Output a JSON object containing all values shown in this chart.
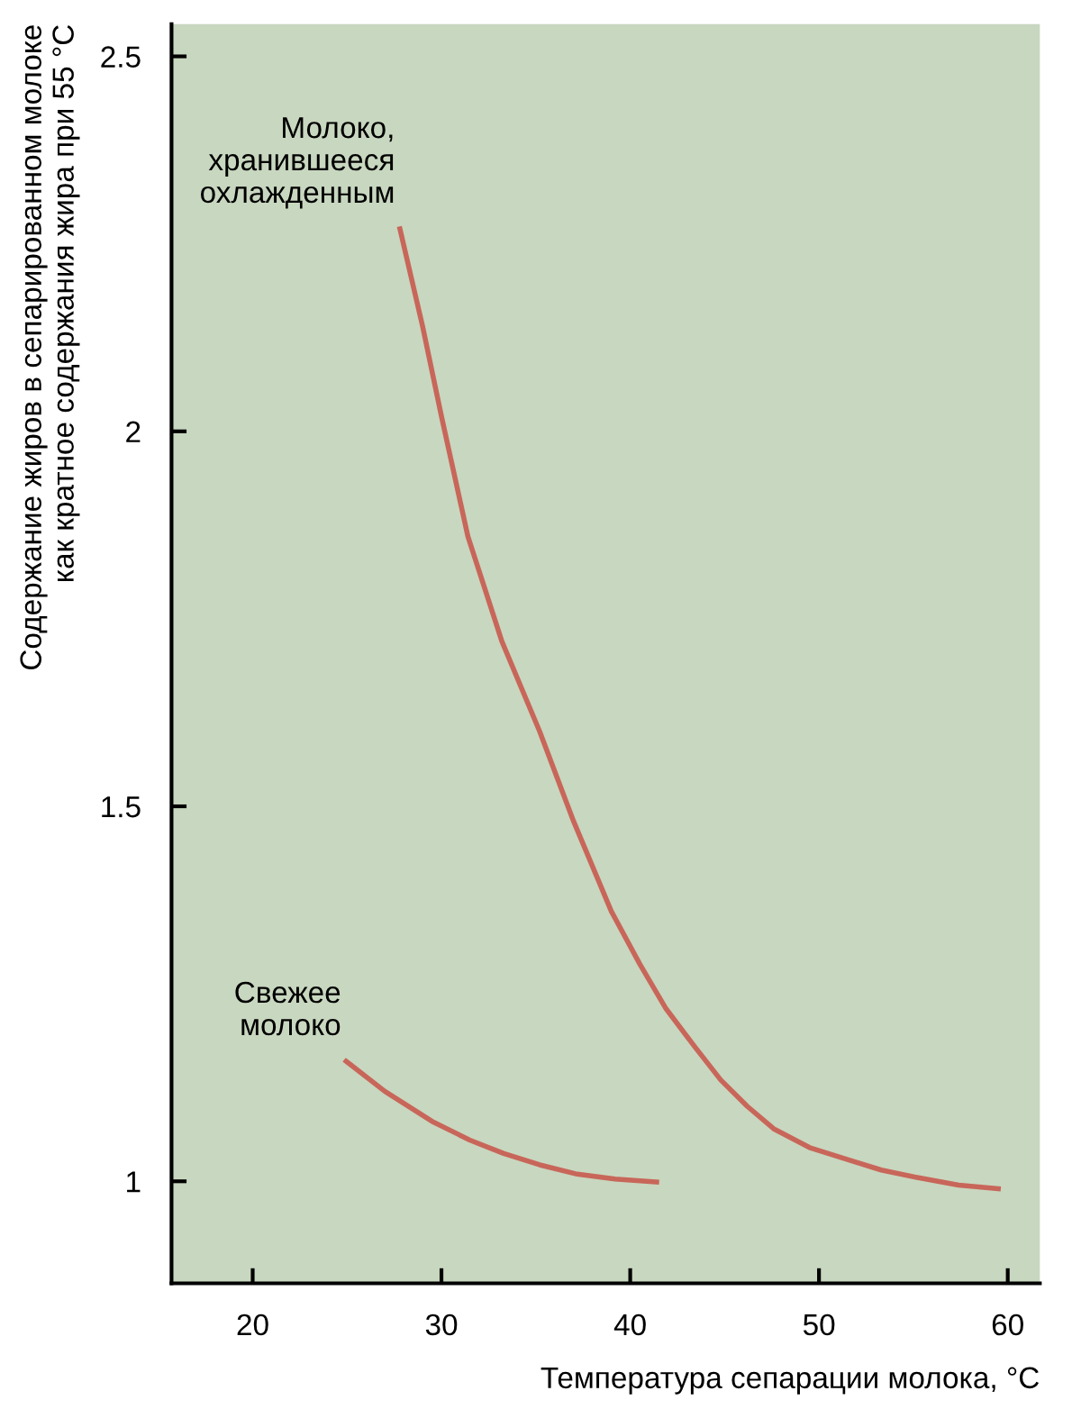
{
  "chart_data": {
    "type": "line",
    "xlabel": "Температура сепарации молока, °C",
    "ylabel": "Содержание жиров в сепарированном молоке\nкак кратное содержания жира при 55 °C",
    "xlim": [
      15.7,
      61.7
    ],
    "ylim": [
      0.864,
      2.543
    ],
    "xticks": [
      20,
      30,
      40,
      50,
      60
    ],
    "yticks": [
      1,
      1.5,
      2,
      2.5
    ],
    "grid": false,
    "legend": false,
    "marker": "none",
    "line_style": "solid",
    "series": [
      {
        "color": "#c8665a",
        "x": [
          27.8,
          29.0,
          30.0,
          31.4,
          33.2,
          35.2,
          37.0,
          39.0,
          40.5,
          41.9,
          43.4,
          44.8,
          46.2,
          47.6,
          49.5,
          51.4,
          53.3,
          55.2,
          57.4,
          59.5
        ],
        "values": [
          2.27,
          2.14,
          2.02,
          1.86,
          1.72,
          1.6,
          1.48,
          1.36,
          1.29,
          1.23,
          1.18,
          1.135,
          1.1,
          1.07,
          1.045,
          1.03,
          1.015,
          1.005,
          0.995,
          0.99
        ]
      },
      {
        "color": "#c8665a",
        "x": [
          24.95,
          27.0,
          29.5,
          31.5,
          33.3,
          35.2,
          37.1,
          39.2,
          41.4
        ],
        "values": [
          1.16,
          1.12,
          1.08,
          1.055,
          1.037,
          1.022,
          1.01,
          1.003,
          0.999
        ]
      }
    ],
    "annotations": [
      {
        "text": "Молоко,\nхранившееся\nохлажденным",
        "x": 27.8,
        "y": 2.27
      },
      {
        "text": "Свежее\nмолоко",
        "x": 24.95,
        "y": 1.16
      }
    ]
  }
}
